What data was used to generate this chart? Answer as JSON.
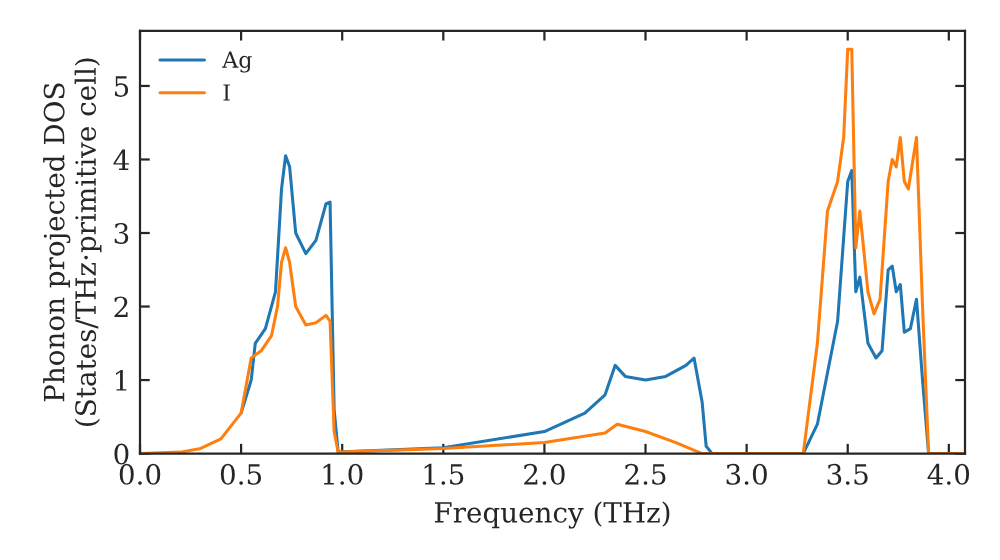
{
  "chart_data": {
    "type": "line",
    "xlabel": "Frequency (THz)",
    "ylabel": "Phonon projected DOS\n(States/THz·primitive cell)",
    "xlim": [
      0,
      4.08
    ],
    "ylim": [
      0,
      5.75
    ],
    "xticks": [
      {
        "value": 0,
        "label": "0.0"
      },
      0.5,
      {
        "value": 1,
        "label": "1.0"
      },
      1.5,
      {
        "value": 2,
        "label": "2.0"
      },
      2.5,
      {
        "value": 3,
        "label": "3.0"
      },
      3.5,
      {
        "value": 4,
        "label": "4.0"
      }
    ],
    "yticks": [
      0,
      1,
      2,
      3,
      4,
      5
    ],
    "legend": "top left",
    "grid": false,
    "series": [
      {
        "name": "Ag",
        "color": "#1f77b4",
        "x": [
          0.5,
          0.55,
          0.57,
          0.62,
          0.67,
          0.7,
          0.72,
          0.74,
          0.77,
          0.82,
          0.87,
          0.92,
          0.94,
          0.96,
          0.98,
          1.5,
          2.0,
          2.2,
          2.3,
          2.35,
          2.4,
          2.5,
          2.6,
          2.7,
          2.74,
          2.78,
          2.8,
          2.83,
          3.28,
          3.35,
          3.45,
          3.5,
          3.52,
          3.54,
          3.56,
          3.6,
          3.64,
          3.67,
          3.7,
          3.72,
          3.74,
          3.76,
          3.78,
          3.81,
          3.84,
          3.87,
          3.9,
          4.08
        ],
        "values": [
          0.55,
          1.0,
          1.5,
          1.7,
          2.2,
          3.6,
          4.05,
          3.9,
          3.0,
          2.72,
          2.9,
          3.4,
          3.42,
          0.6,
          0.02,
          0.08,
          0.3,
          0.55,
          0.8,
          1.2,
          1.05,
          1.0,
          1.05,
          1.2,
          1.3,
          0.7,
          0.1,
          0,
          0,
          0.4,
          1.8,
          3.7,
          3.85,
          2.2,
          2.4,
          1.5,
          1.3,
          1.4,
          2.5,
          2.55,
          2.2,
          2.3,
          1.65,
          1.7,
          2.1,
          1.0,
          0,
          0
        ]
      },
      {
        "name": "I",
        "color": "#ff7f0e",
        "x": [
          0,
          0.2,
          0.3,
          0.4,
          0.5,
          0.55,
          0.6,
          0.65,
          0.68,
          0.7,
          0.72,
          0.74,
          0.77,
          0.82,
          0.87,
          0.92,
          0.94,
          0.96,
          0.98,
          1.5,
          2.0,
          2.3,
          2.36,
          2.5,
          2.65,
          2.78,
          3.28,
          3.35,
          3.4,
          3.45,
          3.48,
          3.5,
          3.52,
          3.54,
          3.56,
          3.6,
          3.63,
          3.66,
          3.7,
          3.72,
          3.74,
          3.76,
          3.78,
          3.8,
          3.84,
          3.87,
          3.9,
          4.08
        ],
        "values": [
          0,
          0.02,
          0.07,
          0.2,
          0.55,
          1.3,
          1.4,
          1.6,
          2.0,
          2.6,
          2.8,
          2.6,
          2.0,
          1.75,
          1.78,
          1.88,
          1.8,
          0.3,
          0.02,
          0.07,
          0.15,
          0.28,
          0.4,
          0.3,
          0.15,
          0,
          0,
          1.5,
          3.3,
          3.7,
          4.3,
          5.5,
          5.5,
          2.8,
          3.3,
          2.2,
          1.9,
          2.1,
          3.7,
          4.0,
          3.9,
          4.3,
          3.7,
          3.6,
          4.3,
          2.0,
          0,
          0
        ]
      }
    ]
  }
}
